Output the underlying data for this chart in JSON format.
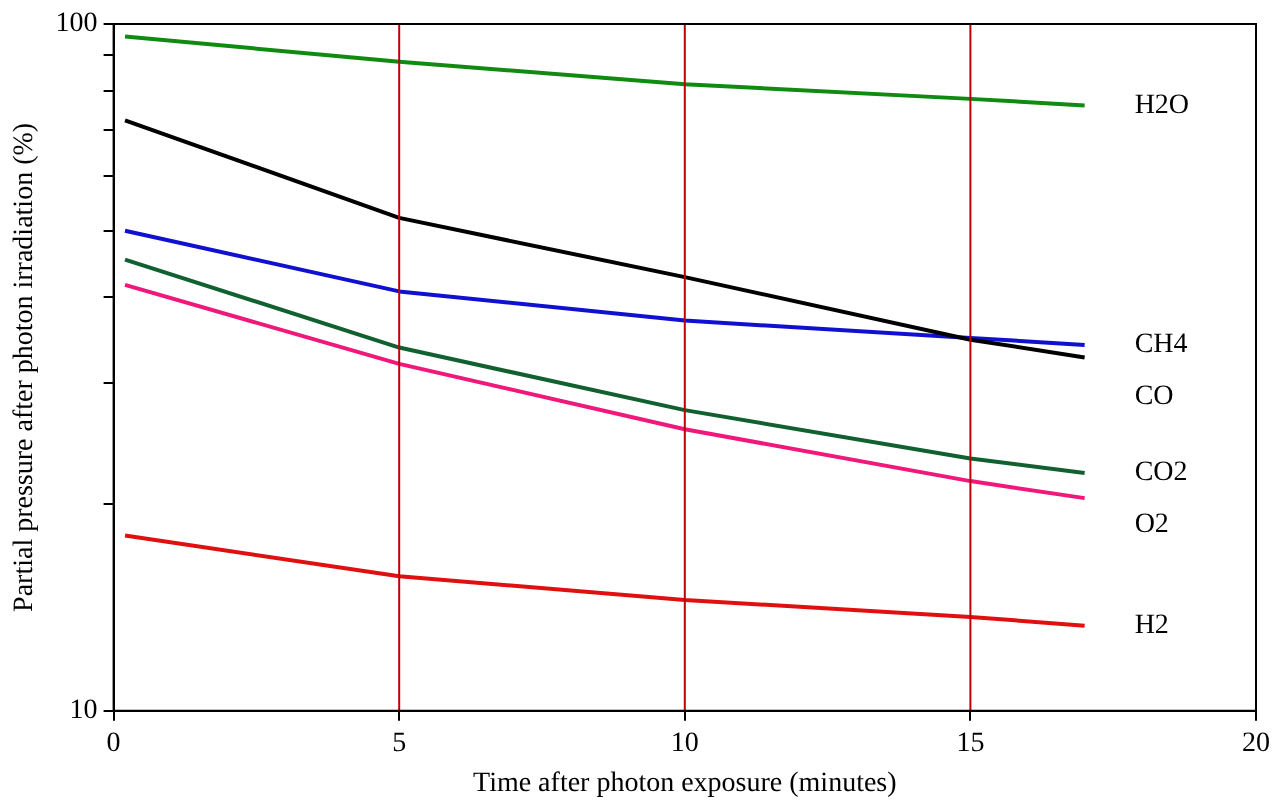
{
  "chart_data": {
    "type": "line",
    "xlabel": "Time after photon exposure (minutes)",
    "ylabel": "Partial pressure after photon irradiation (%)",
    "x": [
      0.2,
      5,
      10,
      15,
      17
    ],
    "series": [
      {
        "name": "H2O",
        "color": "#108a10",
        "values": [
          95.9,
          88.1,
          81.7,
          77.8,
          76.1
        ]
      },
      {
        "name": "CO",
        "color": "#000000",
        "values": [
          72.4,
          52.2,
          42.8,
          34.7,
          32.7
        ]
      },
      {
        "name": "CH4",
        "color": "#1010d0",
        "values": [
          50.0,
          40.8,
          37.0,
          34.9,
          34.1
        ]
      },
      {
        "name": "CO2",
        "color": "#106030",
        "values": [
          45.4,
          33.8,
          27.4,
          23.3,
          22.2
        ]
      },
      {
        "name": "O2",
        "color": "#f0187a",
        "values": [
          41.7,
          32.0,
          25.7,
          21.6,
          20.4
        ]
      },
      {
        "name": "H2",
        "color": "#e01010",
        "values": [
          18.0,
          15.7,
          14.5,
          13.7,
          13.3
        ]
      }
    ],
    "log": "y",
    "xlim": [
      0,
      20
    ],
    "xticks": [
      0,
      5,
      10,
      15,
      20
    ],
    "ylim": [
      10,
      100
    ],
    "yticks": [
      10,
      {
        "value": 20,
        "label": null
      },
      {
        "value": 30,
        "label": null
      },
      {
        "value": 40,
        "label": null
      },
      {
        "value": 50,
        "label": null
      },
      {
        "value": 60,
        "label": null
      },
      {
        "value": 70,
        "label": null
      },
      {
        "value": 80,
        "label": null
      },
      {
        "value": 90,
        "label": null
      },
      100
    ],
    "grid": false,
    "legend": false,
    "marker": "none",
    "line_style": "solid",
    "ref_lines": [
      {
        "axis": "x",
        "value": 5,
        "color": "#c00000"
      },
      {
        "axis": "x",
        "value": 10,
        "color": "#c00000"
      },
      {
        "axis": "x",
        "value": 15,
        "color": "#c00000"
      }
    ]
  }
}
